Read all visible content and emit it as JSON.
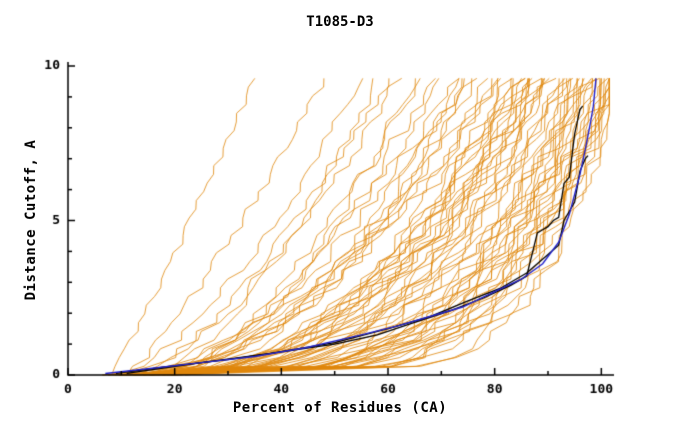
{
  "chart_data": {
    "type": "line",
    "title": "T1085-D3",
    "xlabel": "Percent of Residues (CA)",
    "ylabel": "Distance Cutoff, A",
    "xlim": [
      0,
      102
    ],
    "ylim": [
      0,
      10
    ],
    "x_ticks": [
      0,
      20,
      40,
      60,
      80,
      100
    ],
    "x_minor_ticks": [
      10,
      30,
      50,
      70,
      90
    ],
    "y_ticks": [
      0,
      5,
      10
    ],
    "y_minor_ticks": [
      1,
      2,
      3,
      4,
      6,
      7,
      8,
      9
    ],
    "legend": "none",
    "grid": false,
    "colors": {
      "ensemble": "#e0860a",
      "highlight_blue": "#2222cc",
      "reference_black": "#000000",
      "axis": "#000000",
      "background": "#ffffff"
    },
    "ensemble_description": "Approximately 100 orange model curves: cumulative percent of CA residues under a distance cutoff; each entry is [x_at_y0, x_at_ytop, steepness_exponent]",
    "ensemble_series": [
      [
        8,
        35,
        1.1
      ],
      [
        11,
        48,
        1.2
      ],
      [
        9,
        55,
        1.5
      ],
      [
        14,
        58,
        1.7
      ],
      [
        10,
        62,
        1.6
      ],
      [
        16,
        65,
        1.8
      ],
      [
        12,
        68,
        1.9
      ],
      [
        18,
        70,
        1.6
      ],
      [
        8,
        72,
        2.0
      ],
      [
        15,
        74,
        1.8
      ],
      [
        11,
        75,
        2.2
      ],
      [
        19,
        66,
        1.5
      ],
      [
        13,
        60,
        1.4
      ],
      [
        17,
        73,
        2.1
      ],
      [
        7,
        76,
        2.2
      ],
      [
        12,
        78,
        2.0
      ],
      [
        16,
        79,
        2.4
      ],
      [
        9,
        80,
        2.1
      ],
      [
        14,
        81,
        2.6
      ],
      [
        18,
        82,
        2.2
      ],
      [
        10,
        83,
        2.8
      ],
      [
        15,
        84,
        2.3
      ],
      [
        20,
        85,
        2.5
      ],
      [
        8,
        85,
        3.0
      ],
      [
        13,
        86,
        2.2
      ],
      [
        17,
        87,
        2.7
      ],
      [
        11,
        88,
        2.4
      ],
      [
        19,
        88,
        3.1
      ],
      [
        9,
        89,
        2.6
      ],
      [
        14,
        90,
        2.9
      ],
      [
        16,
        90,
        2.3
      ],
      [
        12,
        86,
        3.3
      ],
      [
        18,
        84,
        2.0
      ],
      [
        10,
        87,
        2.5
      ],
      [
        15,
        82,
        2.8
      ],
      [
        21,
        89,
        2.4
      ],
      [
        7,
        90,
        3.2
      ],
      [
        13,
        80,
        1.9
      ],
      [
        9,
        91,
        3.5
      ],
      [
        14,
        92,
        3.0
      ],
      [
        17,
        92,
        4.0
      ],
      [
        11,
        93,
        3.4
      ],
      [
        16,
        93,
        2.8
      ],
      [
        19,
        94,
        3.8
      ],
      [
        8,
        94,
        4.2
      ],
      [
        13,
        95,
        3.2
      ],
      [
        15,
        95,
        4.5
      ],
      [
        10,
        96,
        3.6
      ],
      [
        18,
        96,
        5.0
      ],
      [
        12,
        97,
        4.0
      ],
      [
        20,
        97,
        3.3
      ],
      [
        9,
        98,
        4.8
      ],
      [
        14,
        98,
        3.7
      ],
      [
        16,
        98,
        5.5
      ],
      [
        11,
        99,
        4.2
      ],
      [
        17,
        99,
        3.5
      ],
      [
        13,
        100,
        5.0
      ],
      [
        19,
        100,
        4.0
      ],
      [
        10,
        100,
        6.0
      ],
      [
        15,
        101,
        4.5
      ],
      [
        12,
        101,
        5.5
      ],
      [
        18,
        102,
        4.8
      ],
      [
        9,
        102,
        3.9
      ],
      [
        14,
        102,
        6.5
      ],
      [
        16,
        102,
        5.2
      ],
      [
        11,
        102,
        4.4
      ],
      [
        20,
        102,
        5.8
      ],
      [
        13,
        102,
        3.6
      ],
      [
        6,
        74,
        2.4
      ],
      [
        22,
        95,
        3.0
      ]
    ],
    "black_series": [
      [
        [
          9,
          0.05
        ],
        [
          20,
          0.3
        ],
        [
          30,
          0.5
        ],
        [
          40,
          0.75
        ],
        [
          50,
          1.0
        ],
        [
          58,
          1.3
        ],
        [
          65,
          1.7
        ],
        [
          72,
          2.1
        ],
        [
          78,
          2.5
        ],
        [
          83,
          2.9
        ],
        [
          86,
          3.2
        ],
        [
          88,
          4.6
        ],
        [
          89,
          4.7
        ],
        [
          90,
          4.8
        ],
        [
          91,
          5.0
        ],
        [
          92,
          5.1
        ],
        [
          93,
          6.2
        ],
        [
          94,
          6.4
        ],
        [
          95,
          7.8
        ],
        [
          96,
          8.6
        ],
        [
          96.5,
          8.7
        ]
      ],
      [
        [
          11,
          0.05
        ],
        [
          25,
          0.4
        ],
        [
          38,
          0.7
        ],
        [
          50,
          1.05
        ],
        [
          60,
          1.5
        ],
        [
          68,
          1.9
        ],
        [
          75,
          2.4
        ],
        [
          81,
          2.8
        ],
        [
          86,
          3.3
        ],
        [
          90,
          3.9
        ],
        [
          92,
          4.2
        ],
        [
          93,
          5.0
        ],
        [
          94,
          5.3
        ],
        [
          95,
          5.6
        ],
        [
          96,
          6.6
        ],
        [
          97,
          7.0
        ],
        [
          97.5,
          7.1
        ]
      ]
    ],
    "blue_series": [
      [
        [
          7,
          0.05
        ],
        [
          15,
          0.2
        ],
        [
          25,
          0.4
        ],
        [
          35,
          0.6
        ],
        [
          45,
          0.9
        ],
        [
          55,
          1.3
        ],
        [
          62,
          1.6
        ],
        [
          68,
          1.9
        ],
        [
          74,
          2.2
        ],
        [
          80,
          2.7
        ],
        [
          85,
          3.1
        ],
        [
          89,
          3.6
        ],
        [
          92,
          4.3
        ],
        [
          94,
          5.2
        ],
        [
          96,
          6.5
        ],
        [
          97,
          7.3
        ],
        [
          98,
          8.2
        ],
        [
          98.5,
          8.7
        ],
        [
          99,
          9.6
        ]
      ]
    ]
  }
}
